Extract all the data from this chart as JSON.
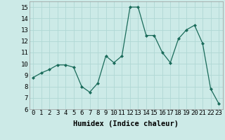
{
  "x": [
    0,
    1,
    2,
    3,
    4,
    5,
    6,
    7,
    8,
    9,
    10,
    11,
    12,
    13,
    14,
    15,
    16,
    17,
    18,
    19,
    20,
    21,
    22,
    23
  ],
  "y": [
    8.8,
    9.2,
    9.5,
    9.9,
    9.9,
    9.7,
    8.0,
    7.5,
    8.3,
    10.7,
    10.1,
    10.7,
    15.0,
    15.0,
    12.5,
    12.5,
    11.0,
    10.1,
    12.2,
    13.0,
    13.4,
    11.8,
    7.8,
    6.5
  ],
  "xlabel": "Humidex (Indice chaleur)",
  "ylim": [
    6,
    15.5
  ],
  "xlim": [
    -0.5,
    23.5
  ],
  "yticks": [
    6,
    7,
    8,
    9,
    10,
    11,
    12,
    13,
    14,
    15
  ],
  "xticks": [
    0,
    1,
    2,
    3,
    4,
    5,
    6,
    7,
    8,
    9,
    10,
    11,
    12,
    13,
    14,
    15,
    16,
    17,
    18,
    19,
    20,
    21,
    22,
    23
  ],
  "line_color": "#1a6b5a",
  "marker": "D",
  "marker_size": 2.0,
  "bg_color": "#cceae7",
  "grid_color": "#b0d8d4",
  "tick_label_fontsize": 6.5,
  "xlabel_fontsize": 7.5
}
